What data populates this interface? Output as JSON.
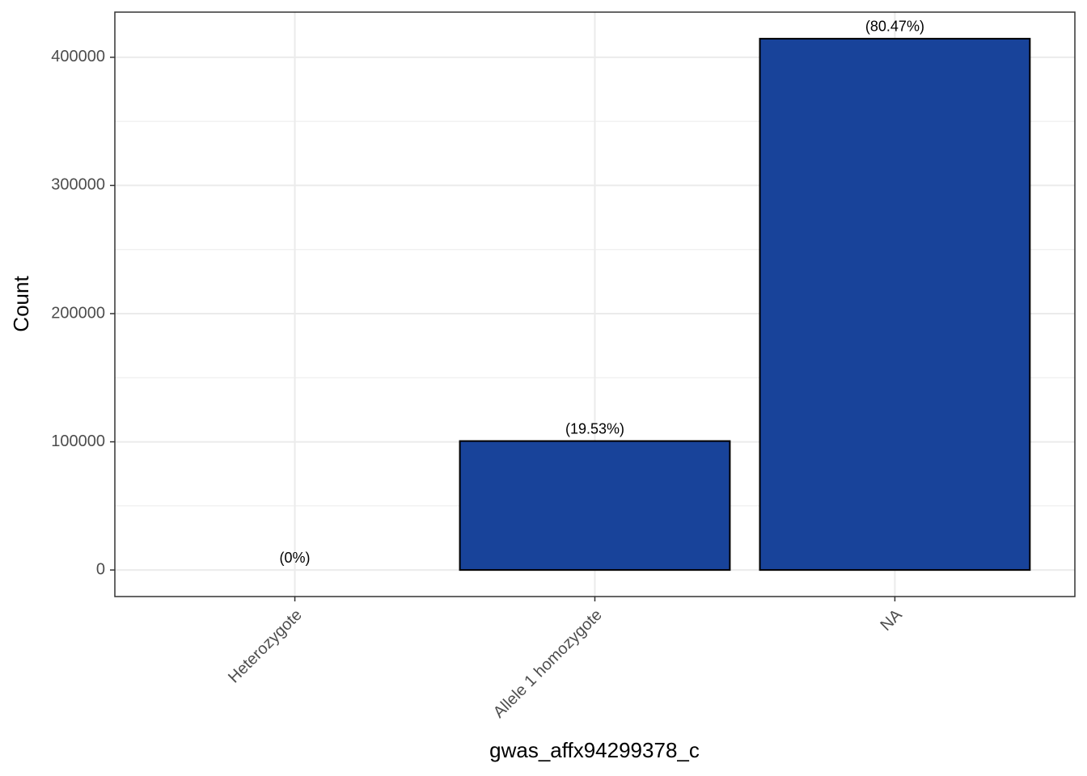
{
  "chart_data": {
    "type": "bar",
    "x_label": "gwas_affx94299378_c",
    "y_label": "Count",
    "categories": [
      "Heterozygote",
      "Allele 1 homozygote",
      "NA"
    ],
    "values": [
      0,
      100600,
      414500
    ],
    "bar_labels": [
      "(0%)",
      "(19.53%)",
      "(80.47%)"
    ],
    "color": "#18439a",
    "ylim": [
      -20725,
      435225
    ],
    "yticks": [
      0,
      100000,
      200000,
      300000,
      400000
    ],
    "minor_yticks": [
      50000,
      150000,
      250000,
      350000
    ],
    "grid": true
  }
}
